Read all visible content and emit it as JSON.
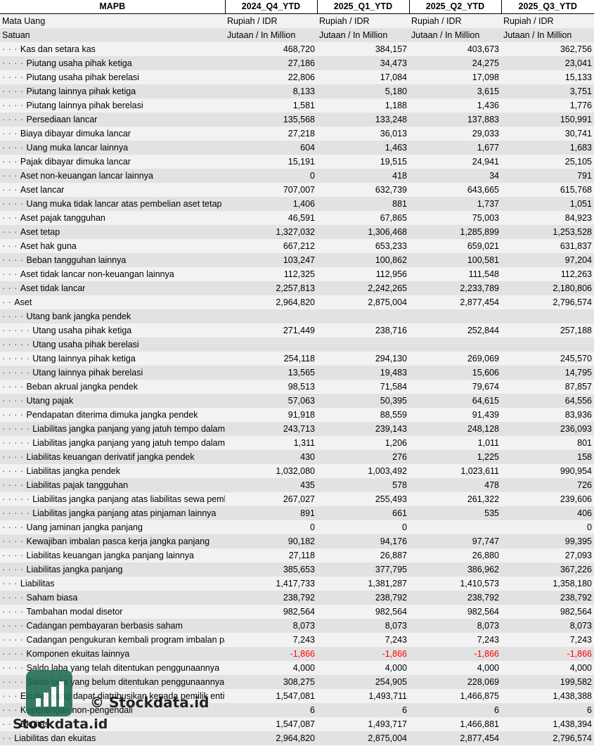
{
  "headers": [
    "MAPB",
    "2024_Q4_YTD",
    "2025_Q1_YTD",
    "2025_Q2_YTD",
    "2025_Q3_YTD"
  ],
  "currency": {
    "label": "Mata Uang",
    "values": [
      "Rupiah / IDR",
      "Rupiah / IDR",
      "Rupiah / IDR",
      "Rupiah / IDR"
    ]
  },
  "unit": {
    "label": "Satuan",
    "values": [
      "Jutaan / In Million",
      "Jutaan / In Million",
      "Jutaan / In Million",
      "Jutaan / In Million"
    ]
  },
  "rows": [
    {
      "indent": "· · · ",
      "label": "Kas dan setara kas",
      "v": [
        "468,720",
        "384,157",
        "403,673",
        "362,756"
      ]
    },
    {
      "indent": "· · · · ",
      "label": "Piutang usaha pihak ketiga",
      "v": [
        "27,186",
        "34,473",
        "24,275",
        "23,041"
      ]
    },
    {
      "indent": "· · · · ",
      "label": "Piutang usaha pihak berelasi",
      "v": [
        "22,806",
        "17,084",
        "17,098",
        "15,133"
      ]
    },
    {
      "indent": "· · · · ",
      "label": "Piutang lainnya pihak ketiga",
      "v": [
        "8,133",
        "5,180",
        "3,615",
        "3,751"
      ]
    },
    {
      "indent": "· · · · ",
      "label": "Piutang lainnya pihak berelasi",
      "v": [
        "1,581",
        "1,188",
        "1,436",
        "1,776"
      ]
    },
    {
      "indent": "· · · · ",
      "label": "Persediaan lancar",
      "v": [
        "135,568",
        "133,248",
        "137,883",
        "150,991"
      ]
    },
    {
      "indent": "· · · ",
      "label": "Biaya dibayar dimuka lancar",
      "v": [
        "27,218",
        "36,013",
        "29,033",
        "30,741"
      ]
    },
    {
      "indent": "· · · · ",
      "label": "Uang muka lancar lainnya",
      "v": [
        "604",
        "1,463",
        "1,677",
        "1,683"
      ]
    },
    {
      "indent": "· · · ",
      "label": "Pajak dibayar dimuka lancar",
      "v": [
        "15,191",
        "19,515",
        "24,941",
        "25,105"
      ]
    },
    {
      "indent": "· · · ",
      "label": "Aset non-keuangan lancar lainnya",
      "v": [
        "0",
        "418",
        "34",
        "791"
      ]
    },
    {
      "indent": "· · · ",
      "label": "Aset lancar",
      "v": [
        "707,007",
        "632,739",
        "643,665",
        "615,768"
      ]
    },
    {
      "indent": "· · · · ",
      "label": "Uang muka tidak lancar atas pembelian aset tetap",
      "v": [
        "1,406",
        "881",
        "1,737",
        "1,051"
      ]
    },
    {
      "indent": "· · · ",
      "label": "Aset pajak tangguhan",
      "v": [
        "46,591",
        "67,865",
        "75,003",
        "84,923"
      ]
    },
    {
      "indent": "· · · ",
      "label": "Aset tetap",
      "v": [
        "1,327,032",
        "1,306,468",
        "1,285,899",
        "1,253,528"
      ]
    },
    {
      "indent": "· · · ",
      "label": "Aset hak guna",
      "v": [
        "667,212",
        "653,233",
        "659,021",
        "631,837"
      ]
    },
    {
      "indent": "· · · · ",
      "label": "Beban tangguhan lainnya",
      "v": [
        "103,247",
        "100,862",
        "100,581",
        "97,204"
      ]
    },
    {
      "indent": "· · · ",
      "label": "Aset tidak lancar non-keuangan lainnya",
      "v": [
        "112,325",
        "112,956",
        "111,548",
        "112,263"
      ]
    },
    {
      "indent": "· · · ",
      "label": "Aset tidak lancar",
      "v": [
        "2,257,813",
        "2,242,265",
        "2,233,789",
        "2,180,806"
      ]
    },
    {
      "indent": "· · ",
      "label": "Aset",
      "v": [
        "2,964,820",
        "2,875,004",
        "2,877,454",
        "2,796,574"
      ]
    },
    {
      "indent": "· · · · ",
      "label": "Utang bank jangka pendek",
      "v": [
        "",
        "",
        "",
        ""
      ]
    },
    {
      "indent": "· · · · · ",
      "label": "Utang usaha pihak ketiga",
      "v": [
        "271,449",
        "238,716",
        "252,844",
        "257,188"
      ]
    },
    {
      "indent": "· · · · · ",
      "label": "Utang usaha pihak berelasi",
      "v": [
        "",
        "",
        "",
        ""
      ]
    },
    {
      "indent": "· · · · · ",
      "label": "Utang lainnya pihak ketiga",
      "v": [
        "254,118",
        "294,130",
        "269,069",
        "245,570"
      ]
    },
    {
      "indent": "· · · · · ",
      "label": "Utang lainnya pihak berelasi",
      "v": [
        "13,565",
        "19,483",
        "15,606",
        "14,795"
      ]
    },
    {
      "indent": "· · · · ",
      "label": "Beban akrual jangka pendek",
      "v": [
        "98,513",
        "71,584",
        "79,674",
        "87,857"
      ]
    },
    {
      "indent": "· · · · ",
      "label": "Utang pajak",
      "v": [
        "57,063",
        "50,395",
        "64,615",
        "64,556"
      ]
    },
    {
      "indent": "· · · · ",
      "label": "Pendapatan diterima dimuka jangka pendek",
      "v": [
        "91,918",
        "88,559",
        "91,439",
        "83,936"
      ]
    },
    {
      "indent": "· · · · · ",
      "label": "Liabilitas jangka panjang yang jatuh tempo dalam satu tahun",
      "v": [
        "243,713",
        "239,143",
        "248,128",
        "236,093"
      ]
    },
    {
      "indent": "· · · · · ",
      "label": "Liabilitas jangka panjang yang jatuh tempo dalam satu tahun",
      "v": [
        "1,311",
        "1,206",
        "1,011",
        "801"
      ]
    },
    {
      "indent": "· · · · ",
      "label": "Liabilitas keuangan derivatif jangka pendek",
      "v": [
        "430",
        "276",
        "1,225",
        "158"
      ]
    },
    {
      "indent": "· · · · ",
      "label": "Liabilitas jangka pendek",
      "v": [
        "1,032,080",
        "1,003,492",
        "1,023,611",
        "990,954"
      ]
    },
    {
      "indent": "· · · · ",
      "label": "Liabilitas pajak tangguhan",
      "v": [
        "435",
        "578",
        "478",
        "726"
      ]
    },
    {
      "indent": "· · · · · ",
      "label": "Liabilitas jangka panjang atas liabilitas sewa pembiayaan",
      "v": [
        "267,027",
        "255,493",
        "261,322",
        "239,606"
      ]
    },
    {
      "indent": "· · · · · ",
      "label": "Liabilitas jangka panjang atas pinjaman lainnya",
      "v": [
        "891",
        "661",
        "535",
        "406"
      ]
    },
    {
      "indent": "· · · · ",
      "label": "Uang jaminan jangka panjang",
      "v": [
        "0",
        "0",
        "",
        "0"
      ]
    },
    {
      "indent": "· · · · ",
      "label": "Kewajiban imbalan pasca kerja jangka panjang",
      "v": [
        "90,182",
        "94,176",
        "97,747",
        "99,395"
      ]
    },
    {
      "indent": "· · · · ",
      "label": "Liabilitas keuangan jangka panjang lainnya",
      "v": [
        "27,118",
        "26,887",
        "26,880",
        "27,093"
      ]
    },
    {
      "indent": "· · · · ",
      "label": "Liabilitas jangka panjang",
      "v": [
        "385,653",
        "377,795",
        "386,962",
        "367,226"
      ]
    },
    {
      "indent": "· · · ",
      "label": "Liabilitas",
      "v": [
        "1,417,733",
        "1,381,287",
        "1,410,573",
        "1,358,180"
      ]
    },
    {
      "indent": "· · · · ",
      "label": "Saham biasa",
      "v": [
        "238,792",
        "238,792",
        "238,792",
        "238,792"
      ]
    },
    {
      "indent": "· · · · ",
      "label": "Tambahan modal disetor",
      "v": [
        "982,564",
        "982,564",
        "982,564",
        "982,564"
      ]
    },
    {
      "indent": "· · · · ",
      "label": "Cadangan pembayaran berbasis saham",
      "v": [
        "8,073",
        "8,073",
        "8,073",
        "8,073"
      ]
    },
    {
      "indent": "· · · · ",
      "label": "Cadangan pengukuran kembali program imbalan pasti",
      "v": [
        "7,243",
        "7,243",
        "7,243",
        "7,243"
      ]
    },
    {
      "indent": "· · · · ",
      "label": "Komponen ekuitas lainnya",
      "v": [
        "-1,866",
        "-1,866",
        "-1,866",
        "-1,866"
      ],
      "negative": true
    },
    {
      "indent": "· · · · ",
      "label": "Saldo laba yang telah ditentukan penggunaannya",
      "v": [
        "4,000",
        "4,000",
        "4,000",
        "4,000"
      ]
    },
    {
      "indent": "· · · · ",
      "label": "Saldo laba yang belum ditentukan penggunaannya",
      "v": [
        "308,275",
        "254,905",
        "228,069",
        "199,582"
      ]
    },
    {
      "indent": "· · · ",
      "label": "Ekuitas yang dapat diatribusikan kepada pemilik entitas induk",
      "v": [
        "1,547,081",
        "1,493,711",
        "1,466,875",
        "1,438,388"
      ]
    },
    {
      "indent": "· · · ",
      "label": "Kepentingan non-pengendali",
      "v": [
        "6",
        "6",
        "6",
        "6"
      ]
    },
    {
      "indent": "· · · ",
      "label": "Ekuitas",
      "v": [
        "1,547,087",
        "1,493,717",
        "1,466,881",
        "1,438,394"
      ]
    },
    {
      "indent": "· · ",
      "label": "Liabilitas dan ekuitas",
      "v": [
        "2,964,820",
        "2,875,004",
        "2,877,454",
        "2,796,574"
      ]
    }
  ],
  "colors": {
    "negative": "#ff0000",
    "row_light": "#f2f2f2",
    "row_dark": "#e2e2e2",
    "logo": "#1d6b4f"
  },
  "watermark": {
    "copyright": "© Stockdata.id",
    "brand": "Stockdata.id",
    "icon": "bar-chart-logo-icon"
  }
}
